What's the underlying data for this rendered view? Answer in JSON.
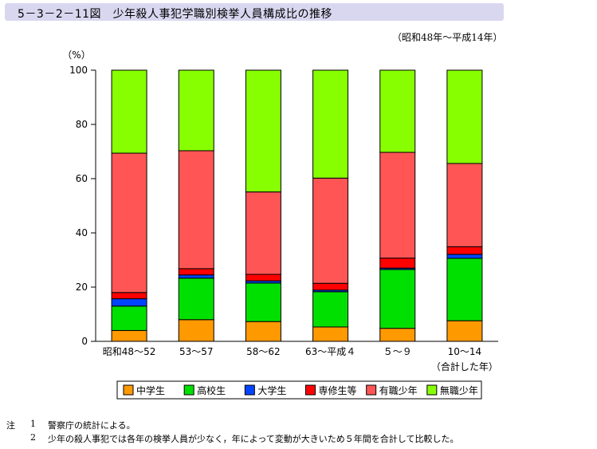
{
  "title": "5－3－2－11図　少年殺人事犯学職別検挙人員構成比の推移",
  "subtitle": "（昭和48年～平成14年）",
  "notes": {
    "prefix": "注",
    "items": [
      {
        "num": "1",
        "text": "警察庁の統計による。"
      },
      {
        "num": "2",
        "text": "少年の殺人事犯では各年の検挙人員が少なく，年によって変動が大きいため５年間を合計して比較した。"
      }
    ]
  },
  "colors": {
    "中学生": "#ff9900",
    "高校生": "#00e000",
    "大学生": "#0044ff",
    "専修生等": "#ff0000",
    "有職少年": "#ff5555",
    "無職少年": "#88ff00"
  },
  "chart_data": {
    "type": "bar",
    "stacked": true,
    "ylabel": "（%）",
    "ylim": [
      0,
      100
    ],
    "yticks": [
      0,
      20,
      40,
      60,
      80,
      100
    ],
    "grid": false,
    "legend_position": "bottom",
    "categories": [
      "昭和48～52",
      "53～57",
      "58～62",
      "63～平成４",
      "５～９",
      "10～14"
    ],
    "category_sublabels": [
      "",
      "",
      "",
      "",
      "",
      "（合計した年）"
    ],
    "series": [
      {
        "name": "中学生",
        "values": [
          4,
          8,
          7.3,
          5.3,
          4.8,
          7.6
        ]
      },
      {
        "name": "高校生",
        "values": [
          9,
          15.3,
          14.2,
          13,
          21.7,
          23
        ]
      },
      {
        "name": "大学生",
        "values": [
          2.7,
          1.2,
          0.8,
          0.6,
          0.5,
          1.5
        ]
      },
      {
        "name": "専修生等",
        "values": [
          2.3,
          2.3,
          2.4,
          2.5,
          3.7,
          2.8
        ]
      },
      {
        "name": "有職少年",
        "values": [
          51.4,
          43.5,
          30.4,
          38.8,
          39,
          30.7
        ]
      },
      {
        "name": "無職少年",
        "values": [
          30.6,
          29.7,
          44.9,
          39.8,
          30.3,
          34.4
        ]
      }
    ]
  }
}
